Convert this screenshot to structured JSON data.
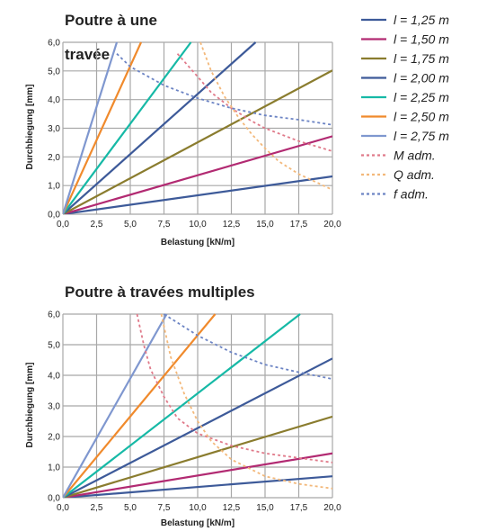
{
  "legend": [
    {
      "label": "l = 1,25 m",
      "color": "#3d5a99",
      "dashed": false
    },
    {
      "label": "l = 1,50 m",
      "color": "#b22a72",
      "dashed": false
    },
    {
      "label": "l = 1,75 m",
      "color": "#8a7c2e",
      "dashed": false
    },
    {
      "label": "l = 2,00 m",
      "color": "#3d5a99",
      "dashed": false
    },
    {
      "label": "l = 2,25 m",
      "color": "#16b9a6",
      "dashed": false
    },
    {
      "label": "l = 2,50 m",
      "color": "#f08a2c",
      "dashed": false
    },
    {
      "label": "l = 2,75 m",
      "color": "#7f97cf",
      "dashed": false
    },
    {
      "label": "M adm.",
      "color": "#e07a8a",
      "dashed": true
    },
    {
      "label": "Q adm.",
      "color": "#f3b87a",
      "dashed": true
    },
    {
      "label": "f adm.",
      "color": "#6c84c4",
      "dashed": true
    }
  ],
  "chart_data": [
    {
      "type": "line",
      "title_line1": "Poutre à une",
      "title_line2": "travée",
      "xlabel": "Belastung [kN/m]",
      "ylabel": "Durchbiegung [mm]",
      "xlim": [
        0,
        20
      ],
      "ylim": [
        0,
        6
      ],
      "xticks": [
        "0,0",
        "2,5",
        "5,0",
        "7,5",
        "10,0",
        "12,5",
        "15,0",
        "17,5",
        "20,0"
      ],
      "yticks": [
        "0,0",
        "1,0",
        "2,0",
        "3,0",
        "4,0",
        "5,0",
        "6,0"
      ],
      "grid": true,
      "series": [
        {
          "name": "l = 1,25 m",
          "color": "#3d5a99",
          "dashed": false,
          "points": [
            [
              0,
              0
            ],
            [
              20,
              1.32
            ]
          ]
        },
        {
          "name": "l = 1,50 m",
          "color": "#b22a72",
          "dashed": false,
          "points": [
            [
              0,
              0
            ],
            [
              20,
              2.72
            ]
          ]
        },
        {
          "name": "l = 1,75 m",
          "color": "#8a7c2e",
          "dashed": false,
          "points": [
            [
              0,
              0
            ],
            [
              20,
              5.02
            ]
          ]
        },
        {
          "name": "l = 2,00 m",
          "color": "#3d5a99",
          "dashed": false,
          "points": [
            [
              0,
              0
            ],
            [
              14.3,
              6.0
            ]
          ]
        },
        {
          "name": "l = 2,25 m",
          "color": "#16b9a6",
          "dashed": false,
          "points": [
            [
              0,
              0
            ],
            [
              9.5,
              6.0
            ]
          ]
        },
        {
          "name": "l = 2,50 m",
          "color": "#f08a2c",
          "dashed": false,
          "points": [
            [
              0,
              0
            ],
            [
              5.8,
              6.0
            ]
          ]
        },
        {
          "name": "l = 2,75 m",
          "color": "#7f97cf",
          "dashed": false,
          "points": [
            [
              0,
              0
            ],
            [
              4.0,
              6.0
            ]
          ]
        },
        {
          "name": "M adm.",
          "color": "#e07a8a",
          "dashed": true,
          "points": [
            [
              8.5,
              5.6
            ],
            [
              10,
              4.8
            ],
            [
              11,
              4.25
            ],
            [
              12.5,
              3.7
            ],
            [
              14,
              3.25
            ],
            [
              15,
              3.0
            ],
            [
              17.5,
              2.55
            ],
            [
              20,
              2.2
            ]
          ]
        },
        {
          "name": "Q adm.",
          "color": "#f3b87a",
          "dashed": true,
          "points": [
            [
              10.2,
              6.0
            ],
            [
              11,
              5.0
            ],
            [
              12,
              4.1
            ],
            [
              13,
              3.4
            ],
            [
              14,
              2.8
            ],
            [
              15,
              2.3
            ],
            [
              16,
              1.85
            ],
            [
              17.5,
              1.4
            ],
            [
              20,
              0.85
            ]
          ]
        },
        {
          "name": "f adm.",
          "color": "#6c84c4",
          "dashed": true,
          "points": [
            [
              4.0,
              5.6
            ],
            [
              5,
              5.15
            ],
            [
              7.5,
              4.5
            ],
            [
              10,
              4.05
            ],
            [
              12.5,
              3.7
            ],
            [
              15,
              3.45
            ],
            [
              17.5,
              3.3
            ],
            [
              20,
              3.12
            ]
          ]
        }
      ]
    },
    {
      "type": "line",
      "title_line1": "Poutre à travées multiples",
      "title_line2": "",
      "xlabel": "Belastung [kN/m]",
      "ylabel": "Durchbiegung [mm]",
      "xlim": [
        0,
        20
      ],
      "ylim": [
        0,
        6
      ],
      "xticks": [
        "0,0",
        "2,5",
        "5,0",
        "7,5",
        "10,0",
        "12,5",
        "15,0",
        "17,5",
        "20,0"
      ],
      "yticks": [
        "0,0",
        "1,0",
        "2,0",
        "3,0",
        "4,0",
        "5,0",
        "6,0"
      ],
      "grid": true,
      "series": [
        {
          "name": "l = 1,25 m",
          "color": "#3d5a99",
          "dashed": false,
          "points": [
            [
              0,
              0
            ],
            [
              20,
              0.7
            ]
          ]
        },
        {
          "name": "l = 1,50 m",
          "color": "#b22a72",
          "dashed": false,
          "points": [
            [
              0,
              0
            ],
            [
              20,
              1.45
            ]
          ]
        },
        {
          "name": "l = 1,75 m",
          "color": "#8a7c2e",
          "dashed": false,
          "points": [
            [
              0,
              0
            ],
            [
              20,
              2.65
            ]
          ]
        },
        {
          "name": "l = 2,00 m",
          "color": "#3d5a99",
          "dashed": false,
          "points": [
            [
              0,
              0
            ],
            [
              20,
              4.55
            ]
          ]
        },
        {
          "name": "l = 2,25 m",
          "color": "#16b9a6",
          "dashed": false,
          "points": [
            [
              0,
              0
            ],
            [
              17.6,
              6.0
            ]
          ]
        },
        {
          "name": "l = 2,50 m",
          "color": "#f08a2c",
          "dashed": false,
          "points": [
            [
              0,
              0
            ],
            [
              11.3,
              6.0
            ]
          ]
        },
        {
          "name": "l = 2,75 m",
          "color": "#7f97cf",
          "dashed": false,
          "points": [
            [
              0,
              0
            ],
            [
              7.7,
              6.0
            ]
          ]
        },
        {
          "name": "M adm.",
          "color": "#e07a8a",
          "dashed": true,
          "points": [
            [
              5.5,
              6.0
            ],
            [
              6,
              5.0
            ],
            [
              6.5,
              4.2
            ],
            [
              7.5,
              3.3
            ],
            [
              8.5,
              2.6
            ],
            [
              10,
              2.1
            ],
            [
              12.5,
              1.7
            ],
            [
              15,
              1.45
            ],
            [
              17.5,
              1.3
            ],
            [
              20,
              1.15
            ]
          ]
        },
        {
          "name": "Q adm.",
          "color": "#f3b87a",
          "dashed": true,
          "points": [
            [
              7.3,
              6.0
            ],
            [
              8,
              4.6
            ],
            [
              9,
              3.4
            ],
            [
              10,
              2.5
            ],
            [
              11,
              1.85
            ],
            [
              12.5,
              1.25
            ],
            [
              15,
              0.7
            ],
            [
              17.5,
              0.45
            ],
            [
              20,
              0.3
            ]
          ]
        },
        {
          "name": "f adm.",
          "color": "#6c84c4",
          "dashed": true,
          "points": [
            [
              7.5,
              6.0
            ],
            [
              10,
              5.3
            ],
            [
              12.5,
              4.75
            ],
            [
              15,
              4.35
            ],
            [
              17.5,
              4.1
            ],
            [
              20,
              3.88
            ]
          ]
        }
      ]
    }
  ]
}
